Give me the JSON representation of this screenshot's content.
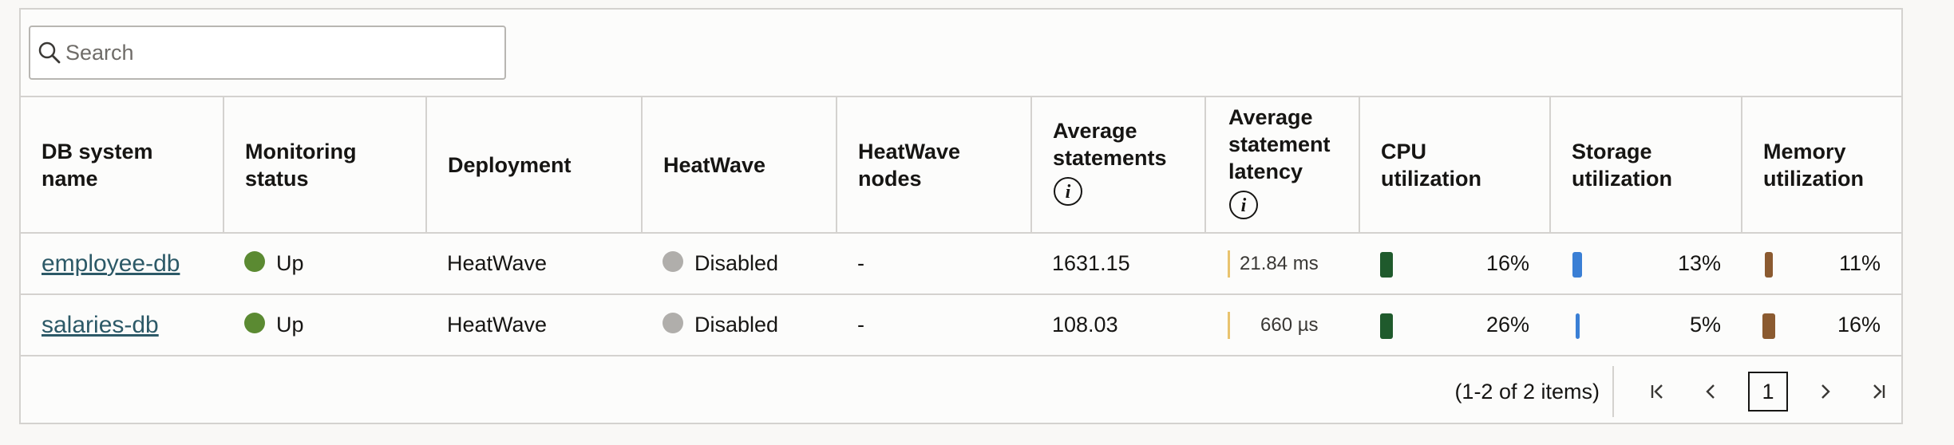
{
  "search": {
    "placeholder": "Search"
  },
  "columns": [
    {
      "label": "DB system name"
    },
    {
      "label": "Monitoring status"
    },
    {
      "label": "Deployment"
    },
    {
      "label": "HeatWave"
    },
    {
      "label": "HeatWave nodes"
    },
    {
      "label": "Average statements"
    },
    {
      "label": "Average statement latency"
    },
    {
      "label": "CPU utilization"
    },
    {
      "label": "Storage utilization"
    },
    {
      "label": "Memory utilization"
    }
  ],
  "rows": [
    {
      "name": "employee-db",
      "status": "Up",
      "deployment": "HeatWave",
      "heatwave": "Disabled",
      "nodes": "-",
      "avg_statements": "1631.15",
      "latency": "21.84 ms",
      "cpu": "16%",
      "storage": "13%",
      "memory": "11%"
    },
    {
      "name": "salaries-db",
      "status": "Up",
      "deployment": "HeatWave",
      "heatwave": "Disabled",
      "nodes": "-",
      "avg_statements": "108.03",
      "latency": "660 µs",
      "cpu": "26%",
      "storage": "5%",
      "memory": "16%"
    }
  ],
  "pagination": {
    "items_text": "(1-2 of 2 items)",
    "current_page": "1"
  },
  "colors": {
    "status_up": "#5b8a32",
    "heatwave_disabled": "#b0aeab",
    "cpu": "#1f5a2c",
    "storage": "#3a7fd5",
    "memory": "#8b5a30",
    "latency": "#e9c36e",
    "link": "#2c5967"
  }
}
